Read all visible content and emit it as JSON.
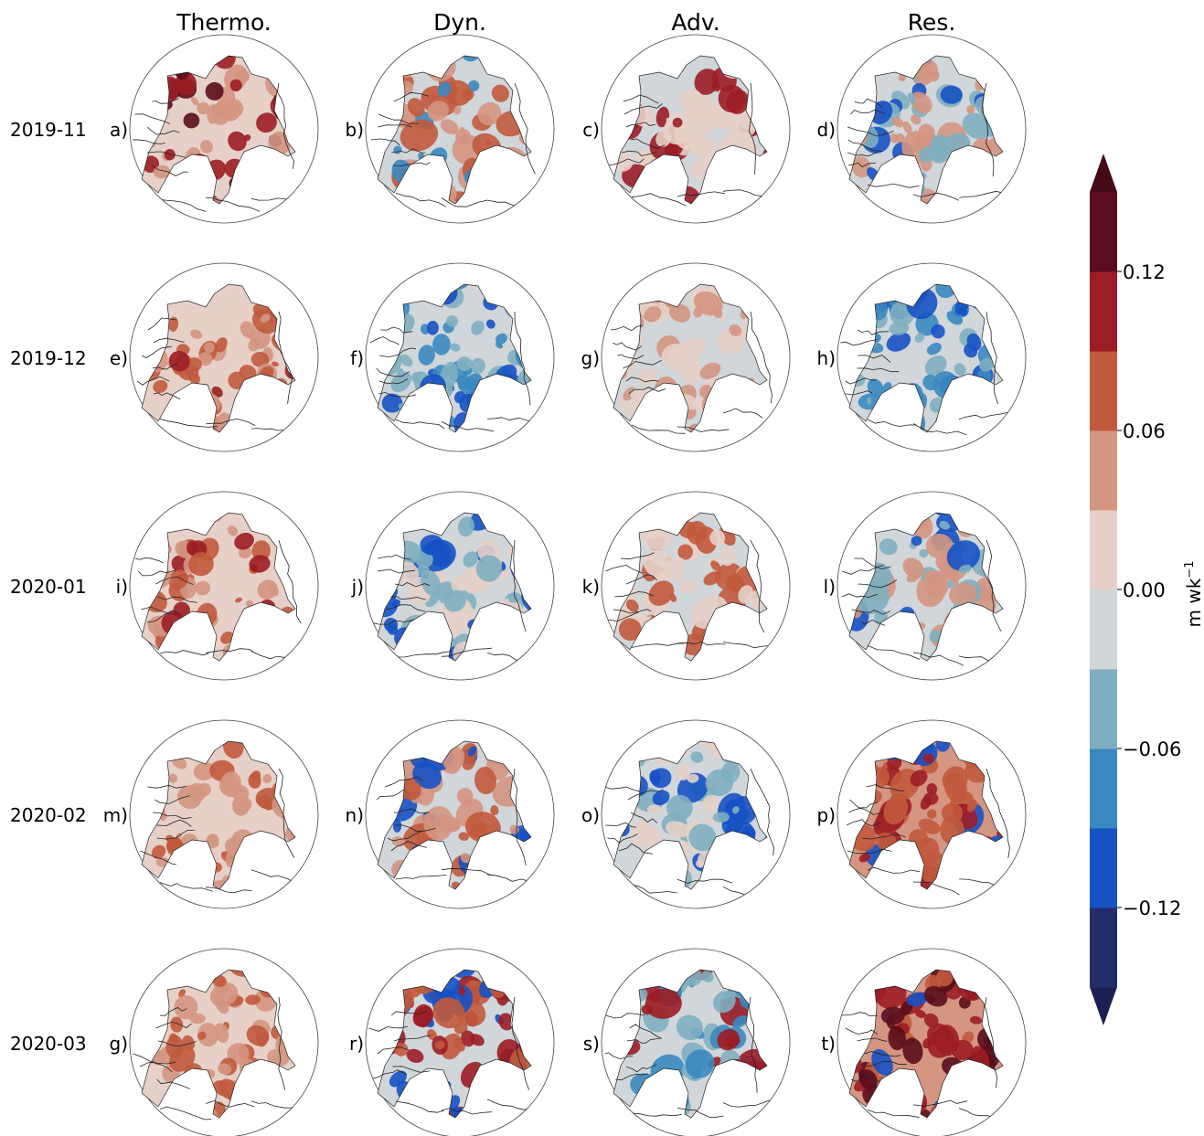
{
  "chart_data": {
    "type": "heatmap",
    "description_of_grid": "5 rows x 4 columns of polar-stereographic Arctic maps",
    "column_titles": [
      "Thermo.",
      "Dyn.",
      "Adv.",
      "Res."
    ],
    "row_labels": [
      "2019-11",
      "2019-12",
      "2020-01",
      "2020-02",
      "2020-03"
    ],
    "panel_labels": [
      [
        "a)",
        "b)",
        "c)",
        "d)"
      ],
      [
        "e)",
        "f)",
        "g)",
        "h)"
      ],
      [
        "i)",
        "j)",
        "k)",
        "l)"
      ],
      [
        "m)",
        "n)",
        "o)",
        "p)"
      ],
      [
        "g)",
        "r)",
        "s)",
        "t)"
      ]
    ],
    "colorbar": {
      "label": "m wk",
      "label_superscript": "−1",
      "ticks": [
        "0.12",
        "0.06",
        "0.00",
        "−0.06",
        "−0.12"
      ],
      "tick_values": [
        0.12,
        0.06,
        0.0,
        -0.06,
        -0.12
      ],
      "levels": [
        -0.15,
        -0.12,
        -0.09,
        -0.06,
        -0.03,
        0.0,
        0.03,
        0.06,
        0.09,
        0.12,
        0.15
      ],
      "colors_bottom_to_top": [
        "#1c1f54",
        "#232d6a",
        "#1652c4",
        "#3a88c0",
        "#7eafc0",
        "#d0d6d9",
        "#e6d0c8",
        "#d49581",
        "#c15a3c",
        "#9c1d25",
        "#5a0d1c",
        "#460a16"
      ],
      "extend": "both"
    },
    "panels": [
      {
        "row": 0,
        "col": 0,
        "dominant": [
          "#e6d0c8",
          "#d49581",
          "#9c1d25",
          "#5a0d1c"
        ]
      },
      {
        "row": 0,
        "col": 1,
        "dominant": [
          "#d0d6d9",
          "#d49581",
          "#c15a3c",
          "#3a88c0"
        ]
      },
      {
        "row": 0,
        "col": 2,
        "dominant": [
          "#d0d6d9",
          "#e6d0c8",
          "#9c1d25"
        ]
      },
      {
        "row": 0,
        "col": 3,
        "dominant": [
          "#d0d6d9",
          "#d49581",
          "#7eafc0",
          "#1652c4"
        ]
      },
      {
        "row": 1,
        "col": 0,
        "dominant": [
          "#e6d0c8",
          "#d49581",
          "#c15a3c",
          "#9c1d25"
        ]
      },
      {
        "row": 1,
        "col": 1,
        "dominant": [
          "#d0d6d9",
          "#7eafc0",
          "#3a88c0",
          "#1652c4"
        ]
      },
      {
        "row": 1,
        "col": 2,
        "dominant": [
          "#d0d6d9",
          "#e6d0c8",
          "#d49581"
        ]
      },
      {
        "row": 1,
        "col": 3,
        "dominant": [
          "#d0d6d9",
          "#7eafc0",
          "#3a88c0",
          "#1652c4"
        ]
      },
      {
        "row": 2,
        "col": 0,
        "dominant": [
          "#e6d0c8",
          "#d49581",
          "#c15a3c",
          "#9c1d25"
        ]
      },
      {
        "row": 2,
        "col": 1,
        "dominant": [
          "#d0d6d9",
          "#7eafc0",
          "#e6d0c8",
          "#1652c4"
        ]
      },
      {
        "row": 2,
        "col": 2,
        "dominant": [
          "#d0d6d9",
          "#e6d0c8",
          "#c15a3c"
        ]
      },
      {
        "row": 2,
        "col": 3,
        "dominant": [
          "#d0d6d9",
          "#d49581",
          "#7eafc0",
          "#1652c4"
        ]
      },
      {
        "row": 3,
        "col": 0,
        "dominant": [
          "#e6d0c8",
          "#d49581",
          "#c15a3c"
        ]
      },
      {
        "row": 3,
        "col": 1,
        "dominant": [
          "#d0d6d9",
          "#d49581",
          "#c15a3c",
          "#1652c4"
        ]
      },
      {
        "row": 3,
        "col": 2,
        "dominant": [
          "#d0d6d9",
          "#e6d0c8",
          "#7eafc0",
          "#1652c4"
        ]
      },
      {
        "row": 3,
        "col": 3,
        "dominant": [
          "#d49581",
          "#c15a3c",
          "#9c1d25",
          "#1652c4"
        ]
      },
      {
        "row": 4,
        "col": 0,
        "dominant": [
          "#e6d0c8",
          "#d49581",
          "#c15a3c"
        ]
      },
      {
        "row": 4,
        "col": 1,
        "dominant": [
          "#d0d6d9",
          "#c15a3c",
          "#9c1d25",
          "#1652c4"
        ]
      },
      {
        "row": 4,
        "col": 2,
        "dominant": [
          "#d0d6d9",
          "#7eafc0",
          "#3a88c0",
          "#9c1d25"
        ]
      },
      {
        "row": 4,
        "col": 3,
        "dominant": [
          "#d49581",
          "#c15a3c",
          "#9c1d25",
          "#5a0d1c",
          "#1652c4"
        ]
      }
    ]
  }
}
